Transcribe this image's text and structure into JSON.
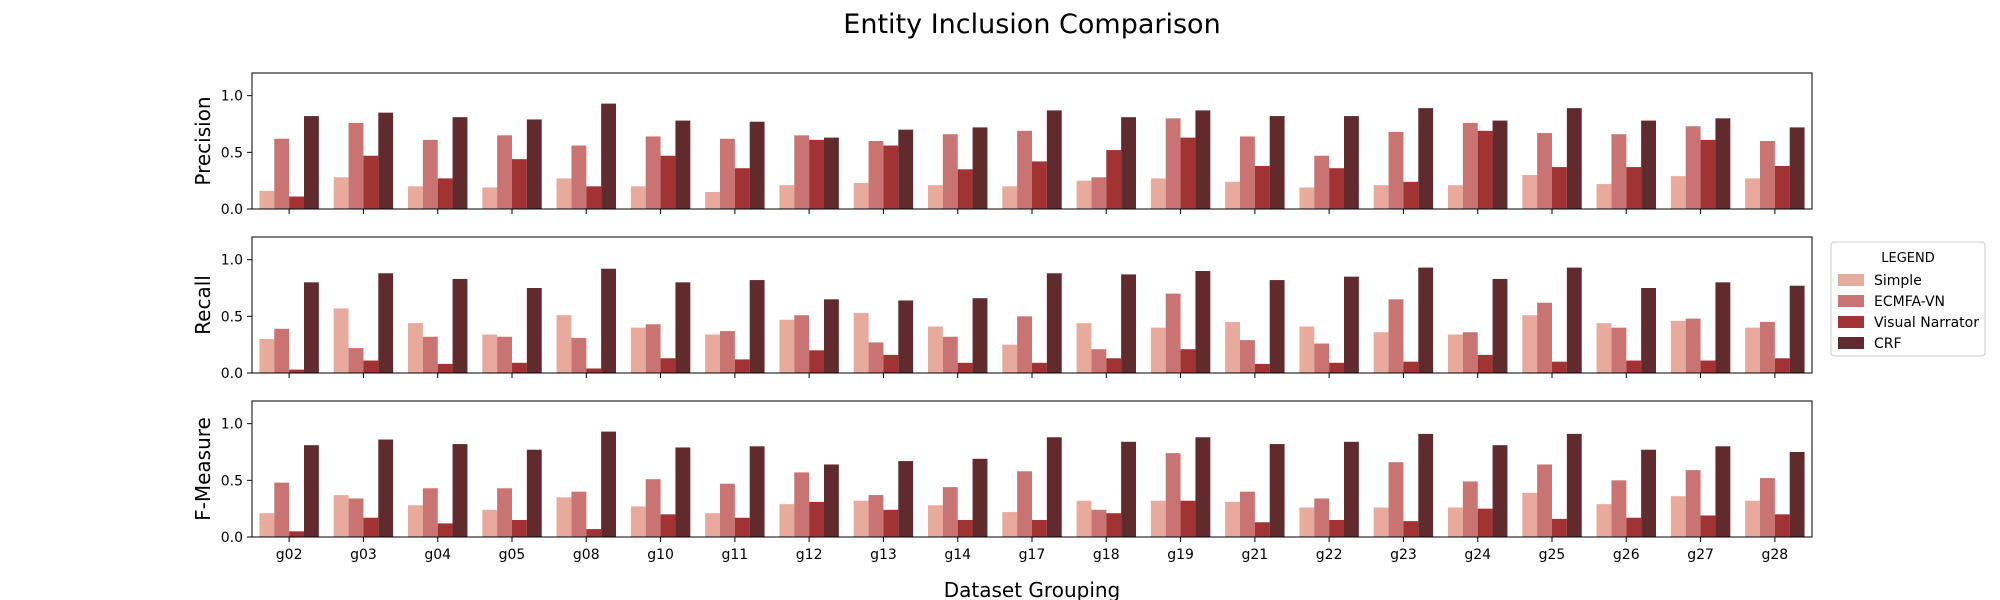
{
  "chart_data": {
    "type": "bar",
    "title": "Entity Inclusion Comparison",
    "xlabel": "Dataset Grouping",
    "categories": [
      "g02",
      "g03",
      "g04",
      "g05",
      "g08",
      "g10",
      "g11",
      "g12",
      "g13",
      "g14",
      "g17",
      "g18",
      "g19",
      "g21",
      "g22",
      "g23",
      "g24",
      "g25",
      "g26",
      "g27",
      "g28"
    ],
    "ylim": [
      0,
      1.2
    ],
    "yticks": [
      0.0,
      0.5,
      1.0
    ],
    "grid": false,
    "legend": {
      "title": "LEGEND",
      "placement": "right",
      "entries": [
        {
          "name": "Simple",
          "color": "#e8aa9c"
        },
        {
          "name": "ECMFA-VN",
          "color": "#c97473"
        },
        {
          "name": "Visual Narrator",
          "color": "#a23335"
        },
        {
          "name": "CRF",
          "color": "#612a2c"
        }
      ]
    },
    "panels": [
      {
        "ylabel": "Precision",
        "series": [
          {
            "name": "Simple",
            "values": [
              0.16,
              0.28,
              0.2,
              0.19,
              0.27,
              0.2,
              0.15,
              0.21,
              0.23,
              0.21,
              0.2,
              0.25,
              0.27,
              0.24,
              0.19,
              0.21,
              0.21,
              0.3,
              0.22,
              0.29,
              0.27
            ]
          },
          {
            "name": "ECMFA-VN",
            "values": [
              0.62,
              0.76,
              0.61,
              0.65,
              0.56,
              0.64,
              0.62,
              0.65,
              0.6,
              0.66,
              0.69,
              0.28,
              0.8,
              0.64,
              0.47,
              0.68,
              0.76,
              0.67,
              0.66,
              0.73,
              0.6
            ]
          },
          {
            "name": "Visual Narrator",
            "values": [
              0.11,
              0.47,
              0.27,
              0.44,
              0.2,
              0.47,
              0.36,
              0.61,
              0.56,
              0.35,
              0.42,
              0.52,
              0.63,
              0.38,
              0.36,
              0.24,
              0.69,
              0.37,
              0.37,
              0.61,
              0.38
            ]
          },
          {
            "name": "CRF",
            "values": [
              0.82,
              0.85,
              0.81,
              0.79,
              0.93,
              0.78,
              0.77,
              0.63,
              0.7,
              0.72,
              0.87,
              0.81,
              0.87,
              0.82,
              0.82,
              0.89,
              0.78,
              0.89,
              0.78,
              0.8,
              0.72
            ]
          }
        ]
      },
      {
        "ylabel": "Recall",
        "series": [
          {
            "name": "Simple",
            "values": [
              0.3,
              0.57,
              0.44,
              0.34,
              0.51,
              0.4,
              0.34,
              0.47,
              0.53,
              0.41,
              0.25,
              0.44,
              0.4,
              0.45,
              0.41,
              0.36,
              0.34,
              0.51,
              0.44,
              0.46,
              0.4
            ]
          },
          {
            "name": "ECMFA-VN",
            "values": [
              0.39,
              0.22,
              0.32,
              0.32,
              0.31,
              0.43,
              0.37,
              0.51,
              0.27,
              0.32,
              0.5,
              0.21,
              0.7,
              0.29,
              0.26,
              0.65,
              0.36,
              0.62,
              0.4,
              0.48,
              0.45
            ]
          },
          {
            "name": "Visual Narrator",
            "values": [
              0.03,
              0.11,
              0.08,
              0.09,
              0.04,
              0.13,
              0.12,
              0.2,
              0.16,
              0.09,
              0.09,
              0.13,
              0.21,
              0.08,
              0.09,
              0.1,
              0.16,
              0.1,
              0.11,
              0.11,
              0.13
            ]
          },
          {
            "name": "CRF",
            "values": [
              0.8,
              0.88,
              0.83,
              0.75,
              0.92,
              0.8,
              0.82,
              0.65,
              0.64,
              0.66,
              0.88,
              0.87,
              0.9,
              0.82,
              0.85,
              0.93,
              0.83,
              0.93,
              0.75,
              0.8,
              0.77
            ]
          }
        ]
      },
      {
        "ylabel": "F-Measure",
        "series": [
          {
            "name": "Simple",
            "values": [
              0.21,
              0.37,
              0.28,
              0.24,
              0.35,
              0.27,
              0.21,
              0.29,
              0.32,
              0.28,
              0.22,
              0.32,
              0.32,
              0.31,
              0.26,
              0.26,
              0.26,
              0.39,
              0.29,
              0.36,
              0.32
            ]
          },
          {
            "name": "ECMFA-VN",
            "values": [
              0.48,
              0.34,
              0.43,
              0.43,
              0.4,
              0.51,
              0.47,
              0.57,
              0.37,
              0.44,
              0.58,
              0.24,
              0.74,
              0.4,
              0.34,
              0.66,
              0.49,
              0.64,
              0.5,
              0.59,
              0.52
            ]
          },
          {
            "name": "Visual Narrator",
            "values": [
              0.05,
              0.17,
              0.12,
              0.15,
              0.07,
              0.2,
              0.17,
              0.31,
              0.24,
              0.15,
              0.15,
              0.21,
              0.32,
              0.13,
              0.15,
              0.14,
              0.25,
              0.16,
              0.17,
              0.19,
              0.2
            ]
          },
          {
            "name": "CRF",
            "values": [
              0.81,
              0.86,
              0.82,
              0.77,
              0.93,
              0.79,
              0.8,
              0.64,
              0.67,
              0.69,
              0.88,
              0.84,
              0.88,
              0.82,
              0.84,
              0.91,
              0.81,
              0.91,
              0.77,
              0.8,
              0.75
            ]
          }
        ]
      }
    ]
  }
}
